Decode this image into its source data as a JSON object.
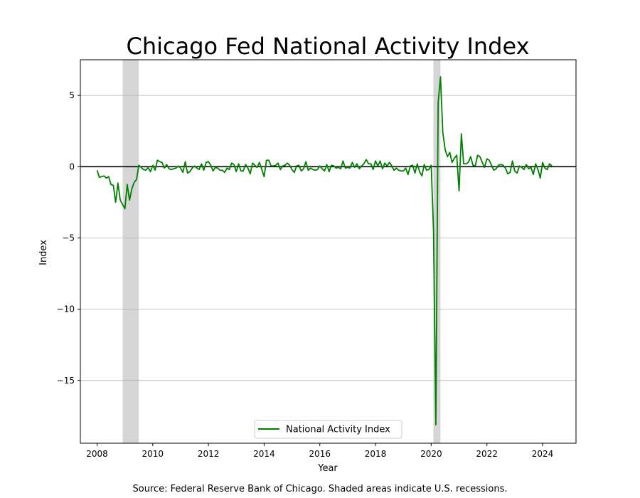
{
  "chart_data": {
    "type": "line",
    "title": "Chicago Fed National Activity Index",
    "xlabel": "Year",
    "ylabel": "Index",
    "xlim": [
      2007.4,
      2025.2
    ],
    "ylim": [
      -19.4,
      7.5
    ],
    "xticks": [
      2008,
      2010,
      2012,
      2014,
      2016,
      2018,
      2020,
      2022,
      2024
    ],
    "yticks": [
      5,
      0,
      -5,
      -10,
      -15
    ],
    "ytick_labels": [
      "5",
      "0",
      "−5",
      "−10",
      "−15"
    ],
    "grid": "horizontal",
    "zero_line": true,
    "legend": {
      "placement": "lower center"
    },
    "recessions": [
      {
        "start": 2008.92,
        "end": 2009.5
      },
      {
        "start": 2020.08,
        "end": 2020.33
      }
    ],
    "series": [
      {
        "name": "National Activity Index",
        "color": "#008000",
        "x_start": 2008.0,
        "x_step_months": 1,
        "values": [
          -0.25,
          -0.75,
          -0.7,
          -0.65,
          -0.8,
          -0.7,
          -1.25,
          -1.3,
          -2.5,
          -1.15,
          -2.35,
          -2.65,
          -2.95,
          -1.25,
          -2.35,
          -1.55,
          -1.1,
          -0.9,
          0.1,
          -0.05,
          -0.2,
          -0.25,
          -0.05,
          -0.35,
          0.1,
          -0.25,
          0.45,
          0.35,
          0.3,
          -0.1,
          0.15,
          -0.15,
          -0.2,
          -0.15,
          -0.1,
          0.05,
          -0.1,
          -0.4,
          0.35,
          -0.45,
          -0.35,
          -0.1,
          0.05,
          -0.1,
          -0.2,
          0.2,
          -0.25,
          0.3,
          0.35,
          0.1,
          -0.3,
          -0.05,
          -0.1,
          -0.25,
          -0.25,
          -0.4,
          -0.1,
          -0.2,
          0.25,
          0.15,
          -0.35,
          0.2,
          -0.3,
          -0.3,
          0.15,
          -0.1,
          -0.5,
          0.25,
          0.1,
          -0.05,
          0.3,
          -0.2,
          -0.7,
          0.45,
          0.45,
          0.05,
          0.05,
          0.1,
          0.25,
          -0.2,
          0.05,
          0.1,
          0.25,
          0.1,
          -0.2,
          -0.4,
          0.05,
          0.1,
          -0.3,
          -0.15,
          0.35,
          -0.25,
          -0.1,
          -0.2,
          -0.25,
          -0.2,
          0.05,
          -0.15,
          -0.3,
          0.15,
          -0.35,
          0.1,
          0.05,
          -0.1,
          -0.05,
          -0.15,
          0.4,
          -0.1,
          -0.05,
          -0.1,
          0.3,
          -0.05,
          0.2,
          -0.15,
          0.05,
          0.2,
          0.5,
          0.2,
          0.2,
          -0.2,
          0.4,
          0.05,
          0.4,
          -0.15,
          0.25,
          0.05,
          0.3,
          0.05,
          -0.25,
          -0.1,
          -0.25,
          -0.3,
          -0.3,
          -0.1,
          -0.55,
          0.05,
          0.1,
          -0.45,
          0.2,
          -0.35,
          -0.65,
          0.15,
          -0.25,
          -0.2,
          0.1,
          -4.5,
          -18.1,
          4.5,
          6.3,
          2.4,
          1.2,
          0.7,
          1.0,
          0.3,
          0.6,
          0.8,
          -1.7,
          2.3,
          0.2,
          0.2,
          0.3,
          0.7,
          0.1,
          0.05,
          0.8,
          0.7,
          0.3,
          -0.05,
          0.55,
          0.45,
          0.1,
          -0.25,
          -0.15,
          0.1,
          0.15,
          0.1,
          -0.1,
          -0.5,
          -0.4,
          0.4,
          -0.3,
          -0.45,
          0.05,
          -0.05,
          -0.2,
          0.15,
          -0.15,
          -0.05,
          -0.55,
          0.2,
          -0.2,
          -0.8,
          0.3,
          -0.1,
          -0.2,
          0.2,
          0.05
        ]
      }
    ]
  },
  "source_note": "Source: Federal Reserve Bank of Chicago. Shaded areas indicate U.S. recessions."
}
